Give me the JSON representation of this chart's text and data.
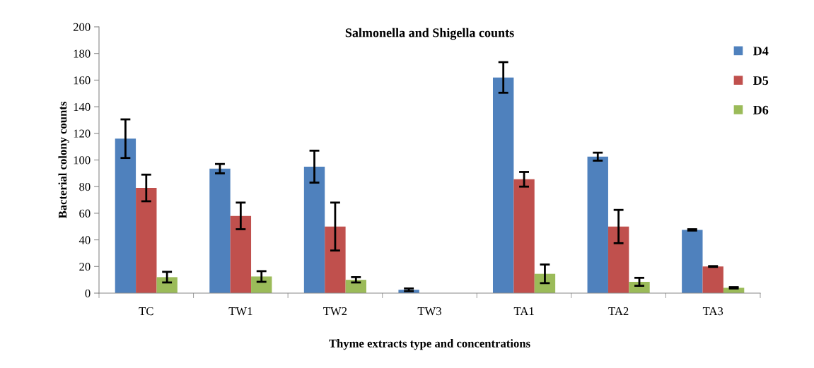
{
  "chart_data": {
    "type": "bar",
    "title": "Salmonella and Shigella counts",
    "xlabel": "Thyme extracts type and concentrations",
    "ylabel": "Bacterial colony counts",
    "categories": [
      "TC",
      "TW1",
      "TW2",
      "TW3",
      "TA1",
      "TA2",
      "TA3"
    ],
    "series": [
      {
        "name": "D4",
        "color": "#4f81bd",
        "values": [
          116,
          93.5,
          95,
          2.5,
          162,
          102.5,
          47.5
        ],
        "errors": [
          14.5,
          3.5,
          12,
          1,
          11.5,
          3,
          0.5
        ]
      },
      {
        "name": "D5",
        "color": "#c0504d",
        "values": [
          79,
          58,
          50,
          null,
          85.5,
          50,
          20
        ],
        "errors": [
          10,
          10,
          18,
          null,
          5.5,
          12.5,
          0.3
        ]
      },
      {
        "name": "D6",
        "color": "#9bbb59",
        "values": [
          12,
          12.5,
          10,
          null,
          14.5,
          8.5,
          4
        ],
        "errors": [
          4,
          4,
          2,
          null,
          7,
          3,
          0.5
        ]
      }
    ],
    "ylim": [
      0,
      200
    ],
    "yticks": [
      0,
      20,
      40,
      60,
      80,
      100,
      120,
      140,
      160,
      180,
      200
    ],
    "grid": false,
    "legend": "top right"
  }
}
